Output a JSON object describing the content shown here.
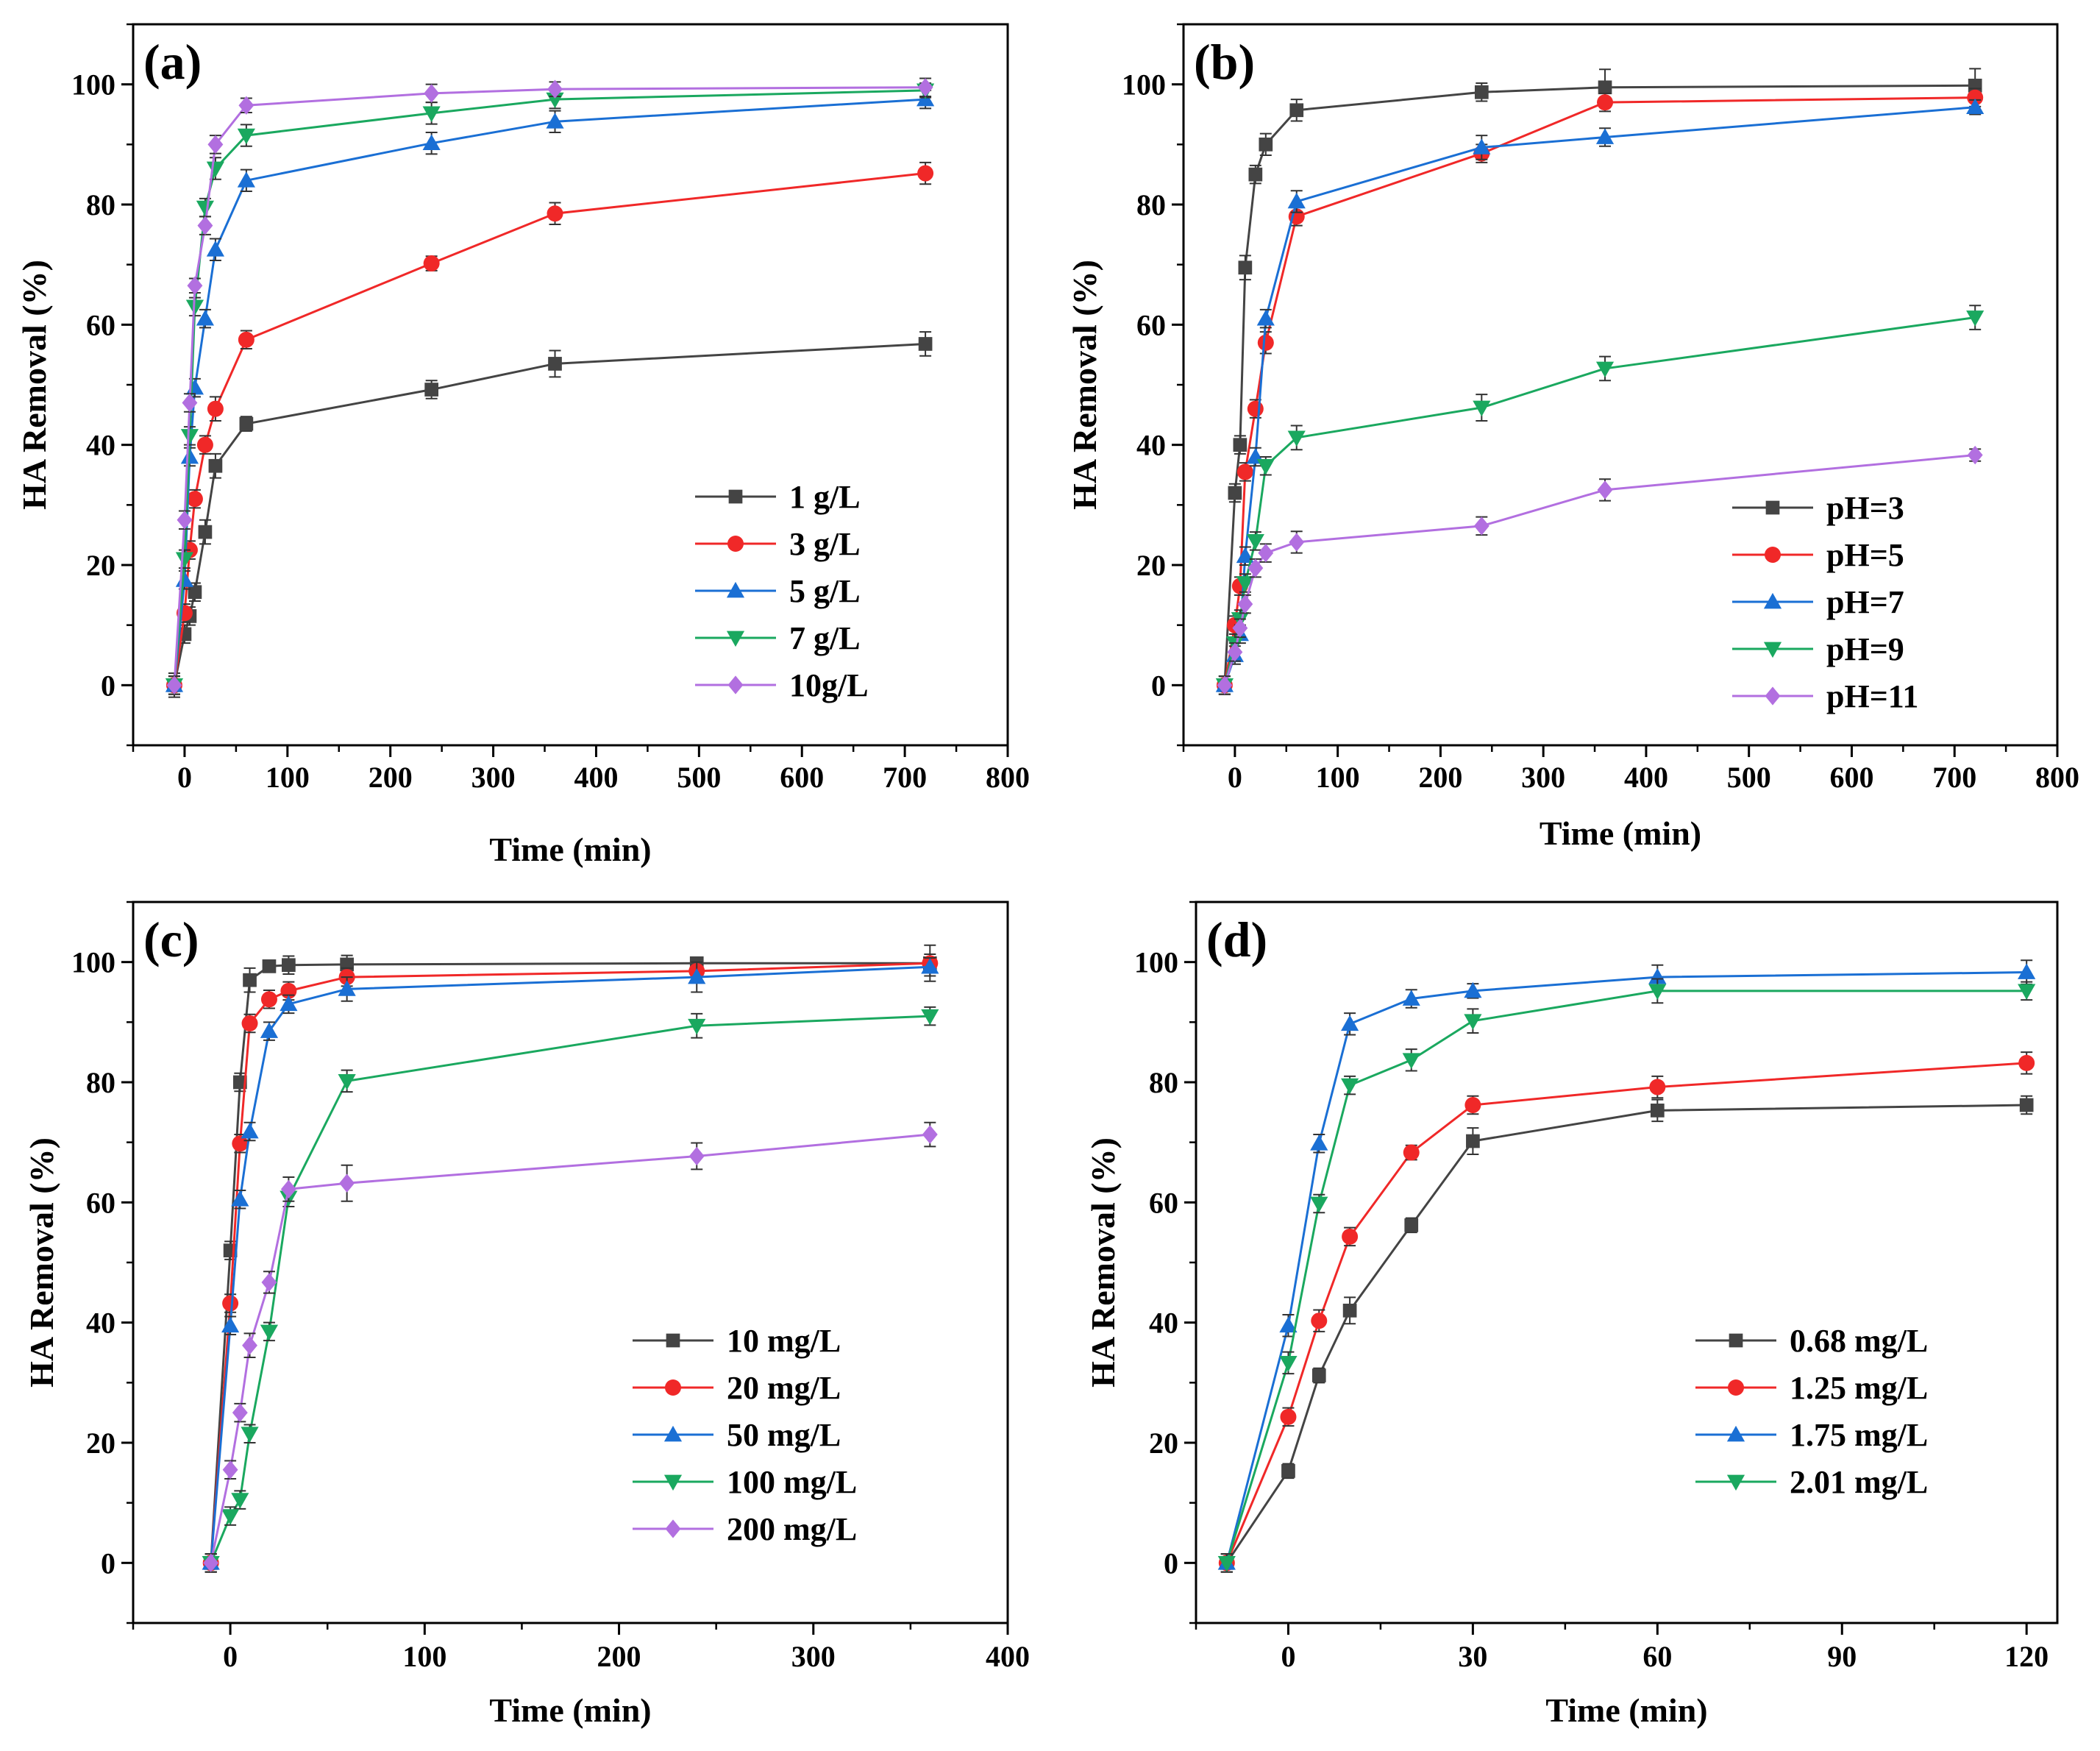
{
  "figure": {
    "description_label": "HA removal kinetics, four panels"
  },
  "chart_data": [
    {
      "type": "line",
      "panel_label": "(a)",
      "xlabel": "Time (min)",
      "ylabel": "HA Removal (%)",
      "xlim": [
        -50,
        800
      ],
      "ylim": [
        -10,
        110
      ],
      "xticks": [
        0,
        100,
        200,
        300,
        400,
        500,
        600,
        700,
        800
      ],
      "yticks": [
        0,
        20,
        40,
        60,
        80,
        100
      ],
      "legend_position": "bottom-right",
      "x": [
        -10,
        0,
        5,
        10,
        20,
        30,
        60,
        240,
        360,
        720
      ],
      "series": [
        {
          "name": "1 g/L",
          "color": "#444444",
          "marker": "square",
          "values": [
            0,
            8.5,
            11.5,
            15.5,
            25.5,
            36.5,
            43.5,
            49.2,
            53.5,
            56.8
          ],
          "errors": [
            2,
            1.5,
            1.5,
            1.5,
            2,
            2,
            1.2,
            1.5,
            2.2,
            2
          ]
        },
        {
          "name": "3 g/L",
          "color": "#f02828",
          "marker": "circle",
          "values": [
            0,
            12,
            22.5,
            31,
            40,
            46,
            57.5,
            70.2,
            78.5,
            85.2
          ],
          "errors": [
            1.5,
            1.5,
            1.5,
            1.5,
            1.5,
            2,
            1.5,
            1.2,
            1.8,
            1.8
          ]
        },
        {
          "name": "5 g/L",
          "color": "#1a6fd4",
          "marker": "triangle-up",
          "values": [
            0,
            17.5,
            38,
            49.5,
            61,
            72.5,
            84,
            90.2,
            93.8,
            97.5
          ],
          "errors": [
            1.5,
            1.5,
            1.5,
            1.5,
            1.5,
            1.8,
            1.8,
            1.8,
            1.8,
            1.5
          ]
        },
        {
          "name": "7 g/L",
          "color": "#1aa85f",
          "marker": "triangle-down",
          "values": [
            0,
            21,
            41.5,
            63,
            79.5,
            86,
            91.5,
            95.2,
            97.5,
            99
          ],
          "errors": [
            1.5,
            1.5,
            1.5,
            1.5,
            1.5,
            1.8,
            1.8,
            1.8,
            1.5,
            1.2
          ]
        },
        {
          "name": "10g/L",
          "color": "#b26fe0",
          "marker": "diamond",
          "values": [
            0,
            27.5,
            47,
            66.5,
            76.5,
            90,
            96.5,
            98.5,
            99.2,
            99.5
          ],
          "errors": [
            1.5,
            1.5,
            1.5,
            1.2,
            1.5,
            1.5,
            1.2,
            1.5,
            1.2,
            1.5
          ]
        }
      ]
    },
    {
      "type": "line",
      "panel_label": "(b)",
      "xlabel": "Time (min)",
      "ylabel": "HA Removal (%)",
      "xlim": [
        -50,
        800
      ],
      "ylim": [
        -10,
        110
      ],
      "xticks": [
        0,
        100,
        200,
        300,
        400,
        500,
        600,
        700,
        800
      ],
      "yticks": [
        0,
        20,
        40,
        60,
        80,
        100
      ],
      "legend_position": "bottom-right",
      "x": [
        -10,
        0,
        5,
        10,
        20,
        30,
        60,
        240,
        360,
        720
      ],
      "series": [
        {
          "name": "pH=3",
          "color": "#444444",
          "marker": "square",
          "values": [
            0,
            32,
            40,
            69.5,
            85,
            90,
            95.7,
            98.7,
            99.5,
            99.8
          ],
          "errors": [
            1.5,
            1.5,
            1.5,
            2,
            1.5,
            1.8,
            1.8,
            1.5,
            3,
            2.8
          ]
        },
        {
          "name": "pH=5",
          "color": "#f02828",
          "marker": "circle",
          "values": [
            0,
            10,
            16.5,
            35.5,
            46,
            57,
            78,
            88.5,
            97,
            97.8
          ],
          "errors": [
            1.5,
            1.5,
            1.5,
            1.5,
            1.5,
            1.8,
            1.5,
            1.5,
            1.5,
            1.5
          ]
        },
        {
          "name": "pH=7",
          "color": "#1a6fd4",
          "marker": "triangle-up",
          "values": [
            0,
            5,
            8.5,
            21.5,
            38,
            61,
            80.5,
            89.5,
            91.2,
            96.2
          ],
          "errors": [
            1.5,
            1.5,
            1.5,
            1.5,
            1.5,
            1.5,
            1.8,
            2,
            1.5,
            1.2
          ]
        },
        {
          "name": "pH=9",
          "color": "#1aa85f",
          "marker": "triangle-down",
          "values": [
            0,
            7,
            11,
            17,
            24,
            36.5,
            41.2,
            46.2,
            52.7,
            61.2
          ],
          "errors": [
            1.5,
            1.5,
            1.5,
            1.5,
            1.5,
            1.5,
            2,
            2.2,
            2,
            2
          ]
        },
        {
          "name": "pH=11",
          "color": "#b26fe0",
          "marker": "diamond",
          "values": [
            0,
            5.5,
            9.5,
            13.5,
            19.5,
            22,
            23.8,
            26.5,
            32.5,
            38.3
          ],
          "errors": [
            1.5,
            1.5,
            1.5,
            1.5,
            1.5,
            1.5,
            1.8,
            1.5,
            1.8,
            1
          ]
        }
      ]
    },
    {
      "type": "line",
      "panel_label": "(c)",
      "xlabel": "Time (min)",
      "ylabel": "HA Removal (%)",
      "xlim": [
        -50,
        400
      ],
      "ylim": [
        -10,
        110
      ],
      "xticks": [
        0,
        100,
        200,
        300,
        400
      ],
      "yticks": [
        0,
        20,
        40,
        60,
        80,
        100
      ],
      "legend_position": "bottom-right",
      "x": [
        -10,
        0,
        5,
        10,
        20,
        30,
        60,
        240,
        360
      ],
      "series": [
        {
          "name": "10  mg/L",
          "color": "#444444",
          "marker": "square",
          "values": [
            0,
            52,
            80,
            97,
            99.3,
            99.5,
            99.6,
            99.8,
            99.8
          ],
          "errors": [
            1.5,
            1.5,
            1.5,
            2,
            1,
            1.5,
            1.5,
            1,
            1.5
          ]
        },
        {
          "name": "20  mg/L",
          "color": "#f02828",
          "marker": "circle",
          "values": [
            0,
            43.2,
            69.8,
            89.8,
            93.8,
            95.2,
            97.5,
            98.5,
            99.8
          ],
          "errors": [
            1.5,
            1.5,
            1.5,
            1.5,
            1.5,
            1.5,
            1.5,
            1,
            3
          ]
        },
        {
          "name": "50  mg/L",
          "color": "#1a6fd4",
          "marker": "triangle-up",
          "values": [
            0,
            39.5,
            60.5,
            71.8,
            88.5,
            93,
            95.5,
            97.5,
            99.2
          ],
          "errors": [
            1.5,
            1.5,
            1.5,
            1.5,
            1.5,
            1.5,
            2,
            2.5,
            1.5
          ]
        },
        {
          "name": "100 mg/L",
          "color": "#1aa85f",
          "marker": "triangle-down",
          "values": [
            0,
            7.8,
            10.5,
            21.5,
            38.5,
            60.8,
            80.2,
            89.4,
            91
          ],
          "errors": [
            1.5,
            1.5,
            1.5,
            1.5,
            1.5,
            1.5,
            1.8,
            2,
            1.5
          ]
        },
        {
          "name": "200 mg/L",
          "color": "#b26fe0",
          "marker": "diamond",
          "values": [
            0,
            15.5,
            25,
            36.2,
            46.7,
            62.2,
            63.2,
            67.7,
            71.3
          ],
          "errors": [
            1.5,
            1.5,
            1.5,
            2,
            1.8,
            2,
            3,
            2.2,
            2
          ]
        }
      ]
    },
    {
      "type": "line",
      "panel_label": "(d)",
      "xlabel": "Time (min)",
      "ylabel": "HA Removal (%)",
      "xlim": [
        -15,
        125
      ],
      "ylim": [
        -10,
        110
      ],
      "xticks": [
        0,
        30,
        60,
        90,
        120
      ],
      "yticks": [
        0,
        20,
        40,
        60,
        80,
        100
      ],
      "legend_position": "bottom-right",
      "x": [
        -10,
        0,
        5,
        10,
        20,
        30,
        60,
        120
      ],
      "series": [
        {
          "name": "0.68  mg/L",
          "color": "#444444",
          "marker": "square",
          "values": [
            0,
            15.3,
            31.2,
            42,
            56.2,
            70.2,
            75.3,
            76.2
          ],
          "errors": [
            1.5,
            1.2,
            1.2,
            2.2,
            1.2,
            2.2,
            1.8,
            1.5
          ]
        },
        {
          "name": "1.25  mg/L",
          "color": "#f02828",
          "marker": "circle",
          "values": [
            0,
            24.3,
            40.3,
            54.3,
            68.3,
            76.2,
            79.2,
            83.2
          ],
          "errors": [
            1.5,
            1.5,
            1.8,
            1.5,
            1.2,
            1.5,
            1.8,
            1.8
          ]
        },
        {
          "name": "1.75  mg/L",
          "color": "#1a6fd4",
          "marker": "triangle-up",
          "values": [
            0,
            39.5,
            69.8,
            89.7,
            93.9,
            95.2,
            97.5,
            98.3
          ],
          "errors": [
            1.5,
            1.8,
            1.5,
            1.8,
            1.5,
            1.2,
            2,
            2
          ]
        },
        {
          "name": "2.01 mg/L",
          "color": "#1aa85f",
          "marker": "triangle-down",
          "values": [
            0,
            33.3,
            59.8,
            79.5,
            83.7,
            90.2,
            95.2,
            95.2
          ],
          "errors": [
            1.5,
            1.8,
            1.5,
            1.5,
            1.8,
            2,
            2,
            1.5
          ]
        }
      ]
    }
  ]
}
